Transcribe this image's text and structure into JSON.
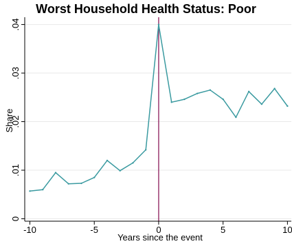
{
  "chart_data": {
    "type": "line",
    "title": "Worst Household Health Status: Poor",
    "xlabel": "Years since the event",
    "ylabel": "Share",
    "xlim": [
      -10.4,
      10.3
    ],
    "ylim": [
      -0.0005,
      0.0415
    ],
    "x_ticks": [
      -10,
      -5,
      0,
      5,
      10
    ],
    "x_tick_labels": [
      "-10",
      "-5",
      "0",
      "5",
      "10"
    ],
    "y_ticks": [
      0,
      0.01,
      0.02,
      0.03,
      0.04
    ],
    "y_tick_labels": [
      "0",
      ".01",
      ".02",
      ".03",
      ".04"
    ],
    "grid": "horizontal",
    "series": [
      {
        "color": "#3a9aa0",
        "x": [
          -10,
          -9,
          -8,
          -7,
          -6,
          -5,
          -4,
          -3,
          -2,
          -1,
          0,
          1,
          2,
          3,
          4,
          5,
          6,
          7,
          8,
          9,
          10
        ],
        "y": [
          0.0057,
          0.006,
          0.0095,
          0.0072,
          0.0073,
          0.0085,
          0.012,
          0.0099,
          0.0115,
          0.0142,
          0.04,
          0.024,
          0.0246,
          0.0258,
          0.0265,
          0.0246,
          0.0209,
          0.0262,
          0.0236,
          0.0268,
          0.0232
        ]
      }
    ],
    "reference_line": {
      "x": 0,
      "color": "#8b1a5a"
    },
    "colors": {
      "grid": "#e8e8e8",
      "axis": "#000000",
      "background": "#ffffff"
    }
  }
}
